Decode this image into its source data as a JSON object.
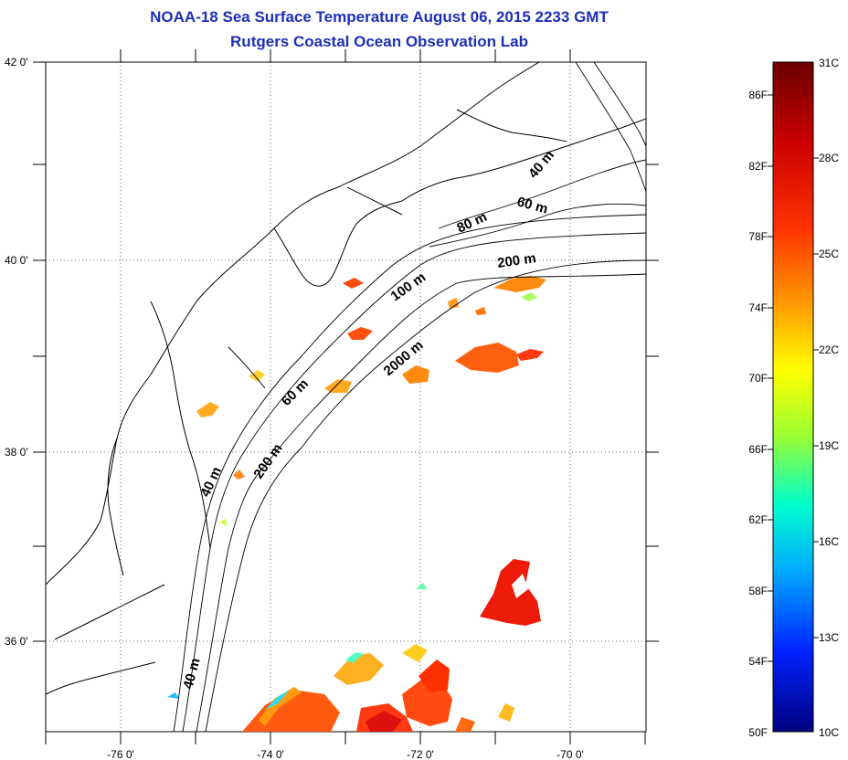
{
  "header": {
    "title": "NOAA-18 Sea Surface Temperature August 06, 2015 2233 GMT",
    "subtitle": "Rutgers Coastal Ocean Observation Lab"
  },
  "map": {
    "lon_labels": [
      "-76 0'",
      "-74 0'",
      "-72 0'",
      "-70 0'"
    ],
    "lat_labels": [
      "42 0'",
      "40 0'",
      "38 0'",
      "36 0'"
    ],
    "contour_labels": [
      "40 m",
      "60 m",
      "80 m",
      "200 m",
      "100 m",
      "2000 m",
      "60 m",
      "40 m",
      "200 m",
      "40 m"
    ],
    "grid": "dotted"
  },
  "colorbar": {
    "fahrenheit_labels": [
      "86F",
      "82F",
      "78F",
      "74F",
      "70F",
      "66F",
      "62F",
      "58F",
      "54F",
      "50F"
    ],
    "celsius_labels": [
      "31C",
      "28C",
      "25C",
      "22C",
      "19C",
      "16C",
      "13C",
      "10C"
    ],
    "colors": [
      "#7f0000",
      "#ff0000",
      "#ff8000",
      "#ffff00",
      "#80ff80",
      "#00ffff",
      "#0080ff",
      "#0000ff",
      "#00007f"
    ]
  }
}
